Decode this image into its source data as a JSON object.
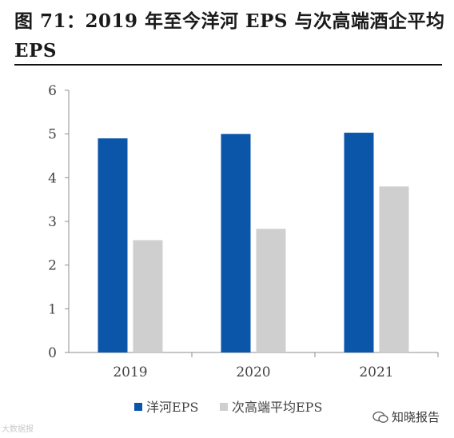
{
  "figure": {
    "title": "图 71：2019 年至今洋河 EPS 与次高端酒企平均 EPS"
  },
  "watermarks": {
    "left_text": "大数据报",
    "right_text": "知晓报告"
  },
  "colors": {
    "series_1": "#0b56a8",
    "series_2": "#cfcfcf",
    "axis": "#8c8c8c",
    "title_rule": "#111111"
  },
  "chart_data": {
    "type": "bar",
    "categories": [
      "2019",
      "2020",
      "2021"
    ],
    "series": [
      {
        "name": "洋河EPS",
        "values": [
          4.9,
          5.0,
          5.03
        ]
      },
      {
        "name": "次高端平均EPS",
        "values": [
          2.57,
          2.83,
          3.8
        ]
      }
    ],
    "ylim": [
      0,
      6
    ],
    "yticks": [
      0,
      1,
      2,
      3,
      4,
      5,
      6
    ],
    "grid": false,
    "legend_position": "bottom",
    "xlabel": "",
    "ylabel": ""
  }
}
